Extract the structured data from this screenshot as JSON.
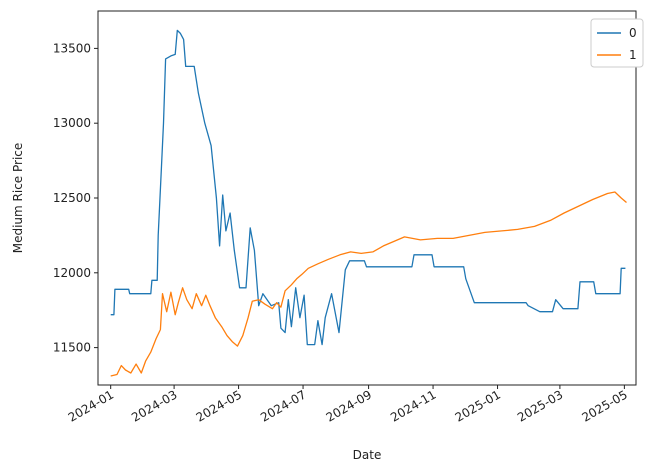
{
  "chart_data": {
    "type": "line",
    "title": "",
    "xlabel": "Date",
    "ylabel": "Medium Rice Price",
    "x_type": "date",
    "xlim": [
      "2023-12-20",
      "2025-05-12"
    ],
    "ylim": [
      11250,
      13750
    ],
    "grid": false,
    "legend_position": "top-right",
    "x_ticks": [
      {
        "date": "2024-01-01",
        "label": "2024-01"
      },
      {
        "date": "2024-03-01",
        "label": "2024-03"
      },
      {
        "date": "2024-05-01",
        "label": "2024-05"
      },
      {
        "date": "2024-07-01",
        "label": "2024-07"
      },
      {
        "date": "2024-09-01",
        "label": "2024-09"
      },
      {
        "date": "2024-11-01",
        "label": "2024-11"
      },
      {
        "date": "2025-01-01",
        "label": "2025-01"
      },
      {
        "date": "2025-03-01",
        "label": "2025-03"
      },
      {
        "date": "2025-05-01",
        "label": "2025-05"
      }
    ],
    "y_ticks": [
      11500,
      12000,
      12500,
      13000,
      13500
    ],
    "series": [
      {
        "name": "0",
        "color": "#1f77b4",
        "points": [
          [
            "2024-01-01",
            11720
          ],
          [
            "2024-01-04",
            11720
          ],
          [
            "2024-01-05",
            11890
          ],
          [
            "2024-01-18",
            11890
          ],
          [
            "2024-01-19",
            11860
          ],
          [
            "2024-02-08",
            11860
          ],
          [
            "2024-02-09",
            11950
          ],
          [
            "2024-02-14",
            11950
          ],
          [
            "2024-02-15",
            12250
          ],
          [
            "2024-02-18",
            12700
          ],
          [
            "2024-02-20",
            13000
          ],
          [
            "2024-02-22",
            13430
          ],
          [
            "2024-02-27",
            13450
          ],
          [
            "2024-03-02",
            13460
          ],
          [
            "2024-03-04",
            13620
          ],
          [
            "2024-03-07",
            13600
          ],
          [
            "2024-03-10",
            13560
          ],
          [
            "2024-03-12",
            13380
          ],
          [
            "2024-03-20",
            13380
          ],
          [
            "2024-03-24",
            13200
          ],
          [
            "2024-03-30",
            13000
          ],
          [
            "2024-04-05",
            12850
          ],
          [
            "2024-04-10",
            12500
          ],
          [
            "2024-04-13",
            12180
          ],
          [
            "2024-04-16",
            12520
          ],
          [
            "2024-04-19",
            12280
          ],
          [
            "2024-04-23",
            12400
          ],
          [
            "2024-04-27",
            12150
          ],
          [
            "2024-05-02",
            11900
          ],
          [
            "2024-05-08",
            11900
          ],
          [
            "2024-05-12",
            12300
          ],
          [
            "2024-05-16",
            12150
          ],
          [
            "2024-05-20",
            11780
          ],
          [
            "2024-05-24",
            11860
          ],
          [
            "2024-06-01",
            11780
          ],
          [
            "2024-06-08",
            11800
          ],
          [
            "2024-06-10",
            11630
          ],
          [
            "2024-06-14",
            11600
          ],
          [
            "2024-06-17",
            11820
          ],
          [
            "2024-06-20",
            11640
          ],
          [
            "2024-06-24",
            11900
          ],
          [
            "2024-06-28",
            11700
          ],
          [
            "2024-07-02",
            11850
          ],
          [
            "2024-07-05",
            11520
          ],
          [
            "2024-07-12",
            11520
          ],
          [
            "2024-07-15",
            11680
          ],
          [
            "2024-07-19",
            11520
          ],
          [
            "2024-07-22",
            11700
          ],
          [
            "2024-07-28",
            11860
          ],
          [
            "2024-08-04",
            11600
          ],
          [
            "2024-08-10",
            12020
          ],
          [
            "2024-08-14",
            12080
          ],
          [
            "2024-08-28",
            12080
          ],
          [
            "2024-08-30",
            12040
          ],
          [
            "2024-10-12",
            12040
          ],
          [
            "2024-10-14",
            12120
          ],
          [
            "2024-10-31",
            12120
          ],
          [
            "2024-11-02",
            12040
          ],
          [
            "2024-11-30",
            12040
          ],
          [
            "2024-12-02",
            11960
          ],
          [
            "2024-12-10",
            11800
          ],
          [
            "2025-01-28",
            11800
          ],
          [
            "2025-01-30",
            11780
          ],
          [
            "2025-02-10",
            11740
          ],
          [
            "2025-02-22",
            11740
          ],
          [
            "2025-02-25",
            11820
          ],
          [
            "2025-03-04",
            11760
          ],
          [
            "2025-03-18",
            11760
          ],
          [
            "2025-03-20",
            11940
          ],
          [
            "2025-04-02",
            11940
          ],
          [
            "2025-04-04",
            11860
          ],
          [
            "2025-04-27",
            11860
          ],
          [
            "2025-04-28",
            12030
          ],
          [
            "2025-05-02",
            12030
          ]
        ]
      },
      {
        "name": "1",
        "color": "#ff7f0e",
        "points": [
          [
            "2024-01-01",
            11310
          ],
          [
            "2024-01-07",
            11320
          ],
          [
            "2024-01-11",
            11380
          ],
          [
            "2024-01-15",
            11350
          ],
          [
            "2024-01-20",
            11330
          ],
          [
            "2024-01-25",
            11390
          ],
          [
            "2024-01-30",
            11330
          ],
          [
            "2024-02-03",
            11410
          ],
          [
            "2024-02-08",
            11470
          ],
          [
            "2024-02-13",
            11560
          ],
          [
            "2024-02-17",
            11620
          ],
          [
            "2024-02-19",
            11860
          ],
          [
            "2024-02-23",
            11740
          ],
          [
            "2024-02-27",
            11870
          ],
          [
            "2024-03-02",
            11720
          ],
          [
            "2024-03-05",
            11800
          ],
          [
            "2024-03-09",
            11900
          ],
          [
            "2024-03-13",
            11820
          ],
          [
            "2024-03-18",
            11760
          ],
          [
            "2024-03-22",
            11860
          ],
          [
            "2024-03-27",
            11780
          ],
          [
            "2024-03-31",
            11850
          ],
          [
            "2024-04-04",
            11780
          ],
          [
            "2024-04-09",
            11700
          ],
          [
            "2024-04-15",
            11640
          ],
          [
            "2024-04-20",
            11580
          ],
          [
            "2024-04-25",
            11540
          ],
          [
            "2024-04-30",
            11510
          ],
          [
            "2024-05-05",
            11580
          ],
          [
            "2024-05-10",
            11700
          ],
          [
            "2024-05-14",
            11810
          ],
          [
            "2024-05-20",
            11820
          ],
          [
            "2024-05-26",
            11790
          ],
          [
            "2024-06-02",
            11760
          ],
          [
            "2024-06-06",
            11800
          ],
          [
            "2024-06-10",
            11770
          ],
          [
            "2024-06-14",
            11880
          ],
          [
            "2024-06-20",
            11920
          ],
          [
            "2024-06-25",
            11960
          ],
          [
            "2024-06-30",
            11990
          ],
          [
            "2024-07-06",
            12030
          ],
          [
            "2024-07-15",
            12060
          ],
          [
            "2024-07-25",
            12090
          ],
          [
            "2024-08-05",
            12120
          ],
          [
            "2024-08-15",
            12140
          ],
          [
            "2024-08-25",
            12130
          ],
          [
            "2024-09-05",
            12140
          ],
          [
            "2024-09-15",
            12180
          ],
          [
            "2024-09-25",
            12210
          ],
          [
            "2024-10-05",
            12240
          ],
          [
            "2024-10-20",
            12220
          ],
          [
            "2024-11-05",
            12230
          ],
          [
            "2024-11-20",
            12230
          ],
          [
            "2024-12-05",
            12250
          ],
          [
            "2024-12-20",
            12270
          ],
          [
            "2025-01-05",
            12280
          ],
          [
            "2025-01-20",
            12290
          ],
          [
            "2025-02-05",
            12310
          ],
          [
            "2025-02-20",
            12350
          ],
          [
            "2025-03-05",
            12400
          ],
          [
            "2025-03-20",
            12450
          ],
          [
            "2025-04-01",
            12490
          ],
          [
            "2025-04-15",
            12530
          ],
          [
            "2025-04-22",
            12540
          ],
          [
            "2025-04-28",
            12500
          ],
          [
            "2025-05-03",
            12470
          ]
        ]
      }
    ]
  }
}
